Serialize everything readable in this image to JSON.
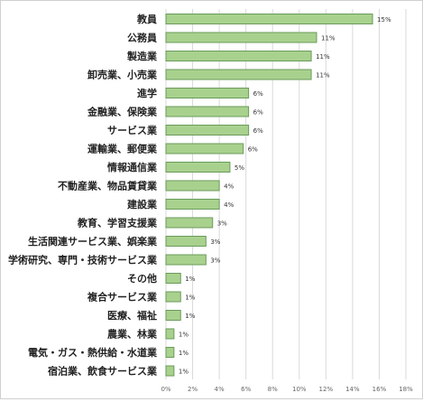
{
  "chart_data": {
    "type": "bar",
    "orientation": "horizontal",
    "categories": [
      "教員",
      "公務員",
      "製造業",
      "卸売業、小売業",
      "進学",
      "金融業、保険業",
      "サービス業",
      "運輸業、郵便業",
      "情報通信業",
      "不動産業、物品賃貸業",
      "建設業",
      "教育、学習支援業",
      "生活関連サービス業、娯楽業",
      "学術研究、専門・技術サービス業",
      "その他",
      "複合サービス業",
      "医療、福祉",
      "農業、林業",
      "電気・ガス・熱供給・水道業",
      "宿泊業、飲食サービス業"
    ],
    "values": [
      15.5,
      11.3,
      10.9,
      10.9,
      6.2,
      6.2,
      6.2,
      5.8,
      4.8,
      4.0,
      4.0,
      3.5,
      3.0,
      3.0,
      1.1,
      1.1,
      1.1,
      0.6,
      0.6,
      0.6
    ],
    "value_labels": [
      "15%",
      "11%",
      "11%",
      "11%",
      "6%",
      "6%",
      "6%",
      "6%",
      "5%",
      "4%",
      "4%",
      "3%",
      "3%",
      "3%",
      "1%",
      "1%",
      "1%",
      "1%",
      "1%",
      "1%"
    ],
    "xlim": [
      0,
      18
    ],
    "xticks": [
      "0%",
      "2%",
      "4%",
      "6%",
      "8%",
      "10%",
      "12%",
      "14%",
      "16%",
      "18%"
    ],
    "title": "",
    "xlabel": "",
    "ylabel": "",
    "grid": "vertical",
    "legend": "none",
    "bar_color": "#a9d18e",
    "bar_border_color": "#6a9b5a"
  }
}
